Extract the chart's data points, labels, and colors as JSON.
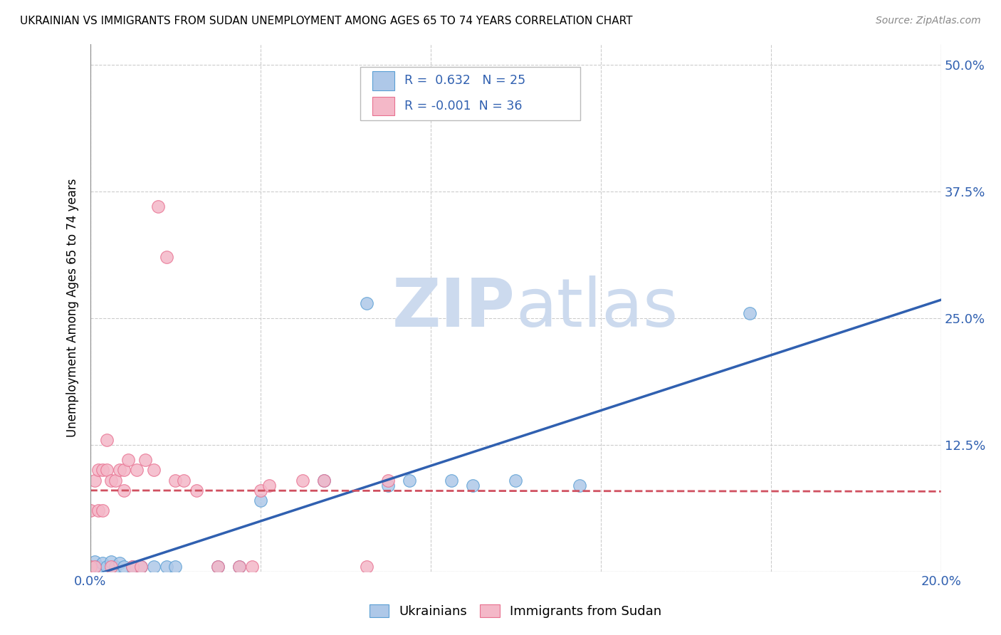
{
  "title": "UKRAINIAN VS IMMIGRANTS FROM SUDAN UNEMPLOYMENT AMONG AGES 65 TO 74 YEARS CORRELATION CHART",
  "source": "Source: ZipAtlas.com",
  "ylabel": "Unemployment Among Ages 65 to 74 years",
  "xlim": [
    0.0,
    0.2
  ],
  "ylim": [
    0.0,
    0.52
  ],
  "xticks": [
    0.0,
    0.04,
    0.08,
    0.12,
    0.16,
    0.2
  ],
  "yticks": [
    0.0,
    0.125,
    0.25,
    0.375,
    0.5
  ],
  "ytick_labels_right": [
    "",
    "12.5%",
    "25.0%",
    "37.5%",
    "50.0%"
  ],
  "xtick_labels": [
    "0.0%",
    "",
    "",
    "",
    "",
    "20.0%"
  ],
  "legend_r_blue": "0.632",
  "legend_n_blue": "25",
  "legend_r_pink": "-0.001",
  "legend_n_pink": "36",
  "legend_label_blue": "Ukrainians",
  "legend_label_pink": "Immigrants from Sudan",
  "blue_scatter_color": "#aec8e8",
  "pink_scatter_color": "#f4b8c8",
  "blue_edge_color": "#5a9fd4",
  "pink_edge_color": "#e87090",
  "blue_line_color": "#3060b0",
  "pink_line_color": "#d05060",
  "watermark_color": "#ccdaee",
  "ukrainians_x": [
    0.001,
    0.002,
    0.003,
    0.004,
    0.005,
    0.006,
    0.007,
    0.008,
    0.01,
    0.012,
    0.015,
    0.018,
    0.02,
    0.03,
    0.035,
    0.04,
    0.055,
    0.065,
    0.07,
    0.075,
    0.085,
    0.09,
    0.1,
    0.115,
    0.155
  ],
  "ukrainians_y": [
    0.01,
    0.005,
    0.008,
    0.005,
    0.01,
    0.005,
    0.008,
    0.005,
    0.005,
    0.005,
    0.005,
    0.005,
    0.005,
    0.005,
    0.005,
    0.07,
    0.09,
    0.265,
    0.085,
    0.09,
    0.09,
    0.085,
    0.09,
    0.085,
    0.255
  ],
  "sudan_x": [
    0.0,
    0.0,
    0.001,
    0.001,
    0.002,
    0.002,
    0.003,
    0.003,
    0.004,
    0.004,
    0.005,
    0.005,
    0.006,
    0.007,
    0.008,
    0.008,
    0.009,
    0.01,
    0.011,
    0.012,
    0.013,
    0.015,
    0.016,
    0.018,
    0.02,
    0.022,
    0.025,
    0.03,
    0.035,
    0.038,
    0.04,
    0.042,
    0.05,
    0.055,
    0.065,
    0.07
  ],
  "sudan_y": [
    0.005,
    0.06,
    0.005,
    0.09,
    0.06,
    0.1,
    0.06,
    0.1,
    0.1,
    0.13,
    0.005,
    0.09,
    0.09,
    0.1,
    0.08,
    0.1,
    0.11,
    0.005,
    0.1,
    0.005,
    0.11,
    0.1,
    0.36,
    0.31,
    0.09,
    0.09,
    0.08,
    0.005,
    0.005,
    0.005,
    0.08,
    0.085,
    0.09,
    0.09,
    0.005,
    0.09
  ],
  "blue_trend_x": [
    0.0,
    0.2
  ],
  "blue_trend_y": [
    -0.005,
    0.268
  ],
  "pink_trend_x": [
    0.0,
    0.2
  ],
  "pink_trend_y": [
    0.08,
    0.079
  ]
}
